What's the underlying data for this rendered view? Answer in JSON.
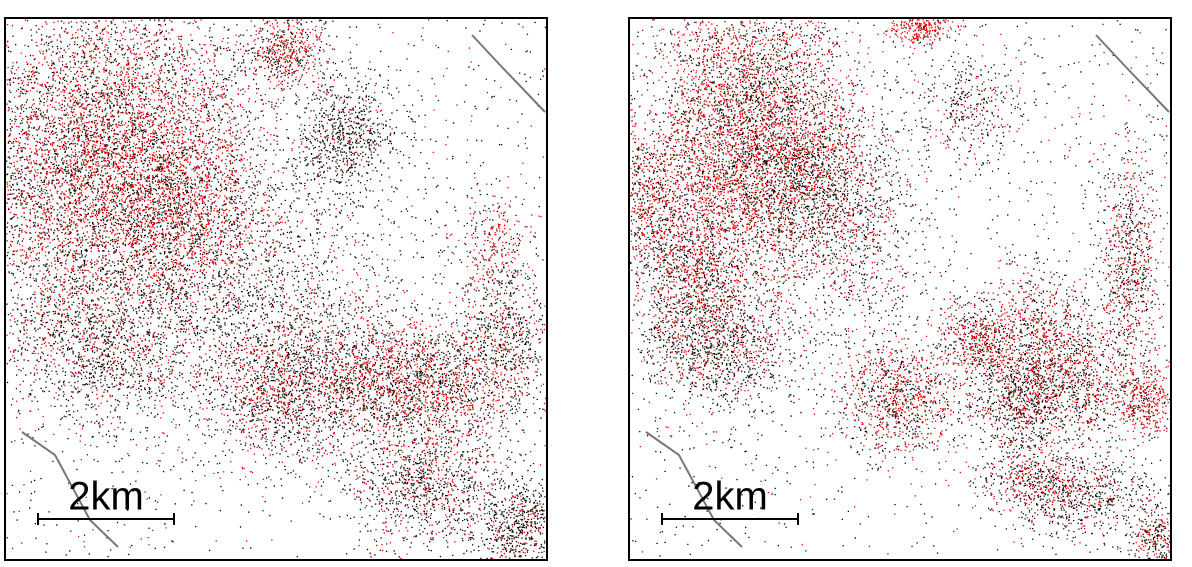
{
  "panels": [
    {
      "scale_label": "2km"
    },
    {
      "scale_label": "2km"
    }
  ]
}
